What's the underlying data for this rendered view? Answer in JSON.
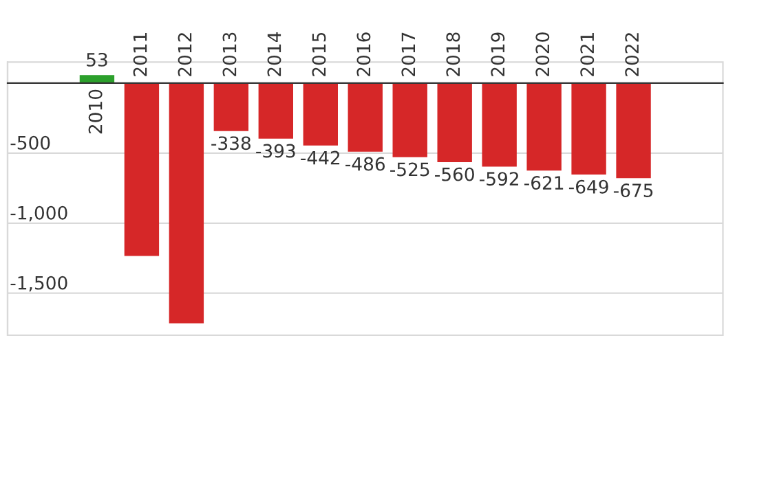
{
  "chart_data": {
    "type": "bar",
    "categories": [
      "2010",
      "2011",
      "2012",
      "2013",
      "2014",
      "2015",
      "2016",
      "2017",
      "2018",
      "2019",
      "2020",
      "2021",
      "2022"
    ],
    "values": [
      53,
      -1230,
      -1710,
      -338,
      -393,
      -442,
      -486,
      -525,
      -560,
      -592,
      -621,
      -649,
      -675
    ],
    "colors": [
      "#2ca02c",
      "#d62728",
      "#d62728",
      "#d62728",
      "#d62728",
      "#d62728",
      "#d62728",
      "#d62728",
      "#d62728",
      "#d62728",
      "#d62728",
      "#d62728",
      "#d62728"
    ],
    "value_labels": [
      "53",
      null,
      null,
      "-338",
      "-393",
      "-442",
      "-486",
      "-525",
      "-560",
      "-592",
      "-621",
      "-649",
      "-675"
    ],
    "ylim": [
      -1800,
      150
    ],
    "yticks": [
      {
        "value": -1500,
        "label": "-1,500"
      },
      {
        "value": -1000,
        "label": "-1,000"
      },
      {
        "value": -500,
        "label": "-500"
      }
    ],
    "grid": "y"
  }
}
